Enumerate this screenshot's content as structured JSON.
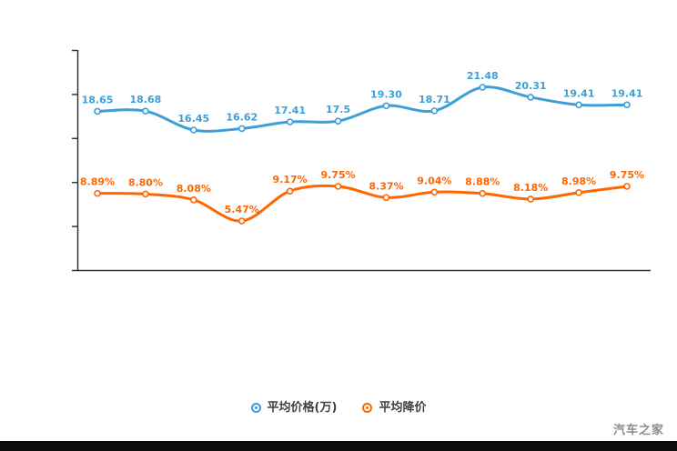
{
  "chart_data": {
    "type": "line",
    "title": "",
    "grid": false,
    "legend_position": "bottom",
    "x_point_count": 12,
    "series": [
      {
        "name": "平均价格(万)",
        "color": "#3C9FD8",
        "values": [
          18.65,
          18.68,
          16.45,
          16.62,
          17.41,
          17.5,
          19.3,
          18.71,
          21.48,
          20.31,
          19.41,
          19.41
        ],
        "labels": [
          "18.65",
          "18.68",
          "16.45",
          "16.62",
          "17.41",
          "17.5",
          "19.30",
          "18.71",
          "21.48",
          "20.31",
          "19.41",
          "19.41"
        ]
      },
      {
        "name": "平均降价",
        "color": "#FF6600",
        "values": [
          8.89,
          8.8,
          8.08,
          5.47,
          9.17,
          9.75,
          8.37,
          9.04,
          8.88,
          8.18,
          8.98,
          9.75
        ],
        "labels": [
          "8.89%",
          "8.80%",
          "8.08%",
          "5.47%",
          "9.17%",
          "9.75%",
          "8.37%",
          "9.04%",
          "8.88%",
          "8.18%",
          "8.98%",
          "9.75%"
        ]
      }
    ]
  },
  "legend": {
    "items": [
      {
        "label": "平均价格(万)"
      },
      {
        "label": "平均降价"
      }
    ]
  },
  "watermark": "汽车之家",
  "colors": {
    "axis": "#333333",
    "blue": "#3C9FD8",
    "orange": "#FF6600",
    "watermark": "#8B8B8B",
    "footer_bar": "#0C0C0C"
  }
}
